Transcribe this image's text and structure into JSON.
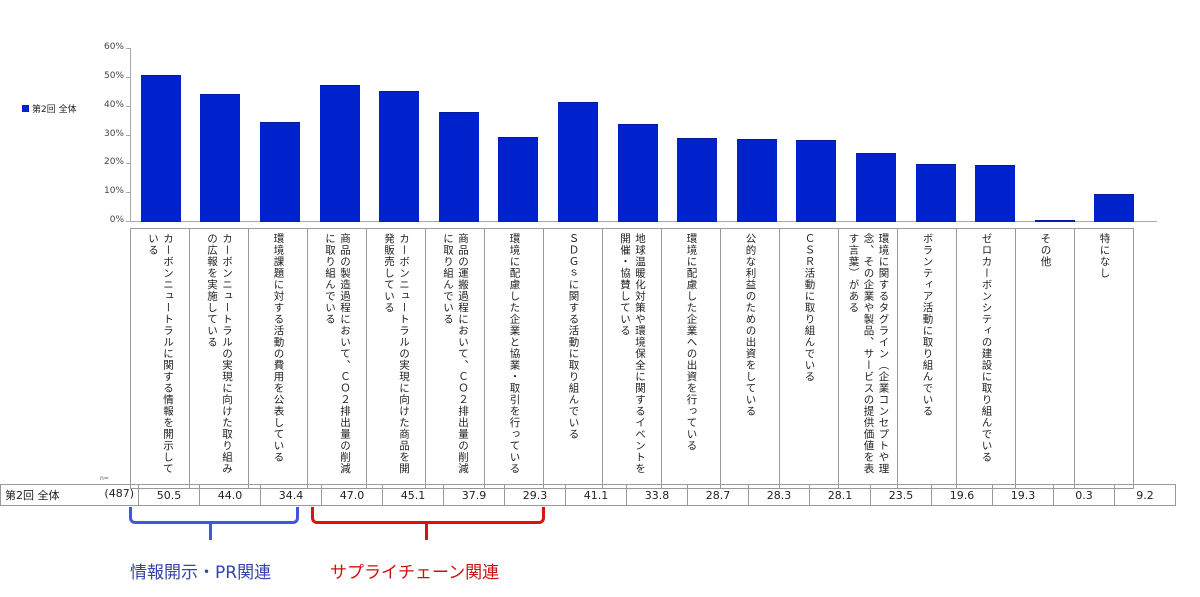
{
  "chart_data": {
    "type": "bar",
    "title": "",
    "xlabel": "",
    "ylabel": "",
    "ylim": [
      0,
      60
    ],
    "y_ticks": [
      "0%",
      "10%",
      "20%",
      "30%",
      "40%",
      "50%",
      "60%"
    ],
    "grid": false,
    "legend_position": "left",
    "series": [
      {
        "name": "第2回 全体",
        "color": "#0022cc",
        "n": "(487)",
        "values": [
          50.5,
          44.0,
          34.4,
          47.0,
          45.1,
          37.9,
          29.3,
          41.1,
          33.8,
          28.7,
          28.3,
          28.1,
          23.5,
          19.6,
          19.3,
          0.3,
          9.2
        ]
      }
    ],
    "categories": [
      "カーボンニュートラルに関する情報を開示している",
      "カーボンニュートラルの実現に向けた取り組みの広報を実施している",
      "環境課題に対する活動の費用を公表している",
      "商品の製造過程において、CO2排出量の削減に取り組んでいる",
      "カーボンニュートラルの実現に向けた商品を開発販売している",
      "商品の運搬過程において、CO2排出量の削減に取り組んでいる",
      "環境に配慮した企業と協業・取引を行っている",
      "SDGsに関する活動に取り組んでいる",
      "地球温暖化対策や環境保全に関するイベントを開催・協賛している",
      "環境に配慮した企業への出資を行っている",
      "公的な利益のための出資をしている",
      "CSR活動に取り組んでいる",
      "環境に関するタグライン（企業コンセプトや理念、その企業や製品、サービスの提供価値を表す言葉）がある",
      "ボランティア活動に取り組んでいる",
      "ゼロカーボンシティの建設に取り組んでいる",
      "その他",
      "特になし"
    ],
    "annotations": [
      {
        "text": "情報開示・PR関連",
        "color": "#3344aa",
        "spans_categories": [
          0,
          2
        ]
      },
      {
        "text": "サプライチェーン関連",
        "color": "#cc1111",
        "spans_categories": [
          3,
          6
        ]
      }
    ]
  },
  "legend": {
    "label": "第2回 全体"
  },
  "table": {
    "n_label": "n=",
    "row_label": "第2回 全体",
    "row_n": "(487)",
    "values": [
      "50.5",
      "44.0",
      "34.4",
      "47.0",
      "45.1",
      "37.9",
      "29.3",
      "41.1",
      "33.8",
      "28.7",
      "28.3",
      "28.1",
      "23.5",
      "19.6",
      "19.3",
      "0.3",
      "9.2"
    ]
  },
  "labels": [
    "カーボンニュートラルに関する情報を開示している",
    "カーボンニュートラルの実現に向けた取り組みの広報を実施している",
    "環境課題に対する活動の費用を公表している",
    "商品の製造過程において、ＣＯ２排出量の削減に取り組んでいる",
    "カーボンニュートラルの実現に向けた商品を開発販売している",
    "商品の運搬過程において、ＣＯ２排出量の削減に取り組んでいる",
    "環境に配慮した企業と協業・取引を行っている",
    "ＳＤＧｓに関する活動に取り組んでいる",
    "地球温暖化対策や環境保全に関するイベントを開催・協賛している",
    "環境に配慮した企業への出資を行っている",
    "公的な利益のための出資をしている",
    "ＣＳＲ活動に取り組んでいる",
    "環境に関するタグライン（企業コンセプトや理念、その企業や製品、サービスの提供価値を表す言葉）がある",
    "ボランティア活動に取り組んでいる",
    "ゼロカーボンシティの建設に取り組んでいる",
    "その他",
    "特になし"
  ],
  "annotations": {
    "info_pr": "情報開示・PR関連",
    "supply_chain": "サプライチェーン関連"
  }
}
